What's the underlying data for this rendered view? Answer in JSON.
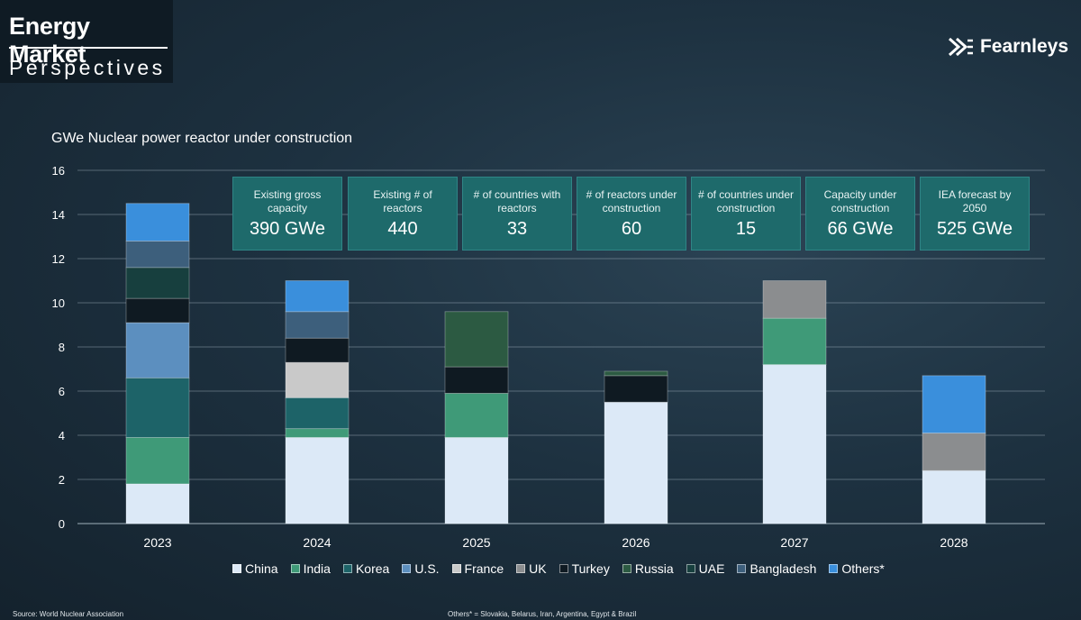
{
  "header": {
    "title": "Energy Market",
    "subtitle": "Perspectives",
    "logo_text": "Fearnleys"
  },
  "chart_data": {
    "type": "bar",
    "stacked": true,
    "title": "GWe Nuclear power reactor under construction",
    "categories": [
      "2023",
      "2024",
      "2025",
      "2026",
      "2027",
      "2028"
    ],
    "ylim": [
      0,
      16
    ],
    "yticks": [
      "0",
      "2",
      "4",
      "6",
      "8",
      "10",
      "12",
      "14",
      "16"
    ],
    "series": [
      {
        "name": "China",
        "color": "#dce9f7",
        "values": [
          1.8,
          3.9,
          3.9,
          5.5,
          7.2,
          2.4
        ]
      },
      {
        "name": "India",
        "color": "#3f9a78",
        "values": [
          2.1,
          0.4,
          2.0,
          0,
          2.1,
          0
        ]
      },
      {
        "name": "Korea",
        "color": "#1d6368",
        "values": [
          2.7,
          1.4,
          0,
          0,
          0,
          0
        ]
      },
      {
        "name": "U.S.",
        "color": "#5c8fbf",
        "values": [
          2.5,
          0,
          0,
          0,
          0,
          0
        ]
      },
      {
        "name": "France",
        "color": "#c9c9c9",
        "values": [
          0,
          1.6,
          0,
          0,
          0,
          0
        ]
      },
      {
        "name": "UK",
        "color": "#8b8d8f",
        "values": [
          0,
          0,
          0,
          0,
          1.7,
          1.7
        ]
      },
      {
        "name": "Turkey",
        "color": "#0f1a22",
        "values": [
          1.1,
          1.1,
          1.2,
          1.2,
          0,
          0
        ]
      },
      {
        "name": "Russia",
        "color": "#2c5a42",
        "values": [
          0,
          0,
          2.5,
          0.2,
          0,
          0
        ]
      },
      {
        "name": "UAE",
        "color": "#173f3e",
        "values": [
          1.4,
          0,
          0,
          0,
          0,
          0
        ]
      },
      {
        "name": "Bangladesh",
        "color": "#3d5f7c",
        "values": [
          1.2,
          1.2,
          0,
          0,
          0,
          0
        ]
      },
      {
        "name": "Others*",
        "color": "#3a8fdc",
        "values": [
          1.7,
          1.4,
          0,
          0,
          0,
          2.6
        ]
      }
    ]
  },
  "kpis": [
    {
      "label": "Existing gross capacity",
      "value": "390 GWe"
    },
    {
      "label": "Existing # of reactors",
      "value": "440"
    },
    {
      "label": "# of countries with reactors",
      "value": "33"
    },
    {
      "label": "# of reactors under construction",
      "value": "60"
    },
    {
      "label": "# of countries under construction",
      "value": "15"
    },
    {
      "label": "Capacity under construction",
      "value": "66 GWe"
    },
    {
      "label": "IEA forecast by 2050",
      "value": "525 GWe"
    }
  ],
  "footer": {
    "source": "Source: World Nuclear Association",
    "others_note": "Others* = Slovakia, Belarus, Iran, Argentina, Egypt & Brazil"
  }
}
